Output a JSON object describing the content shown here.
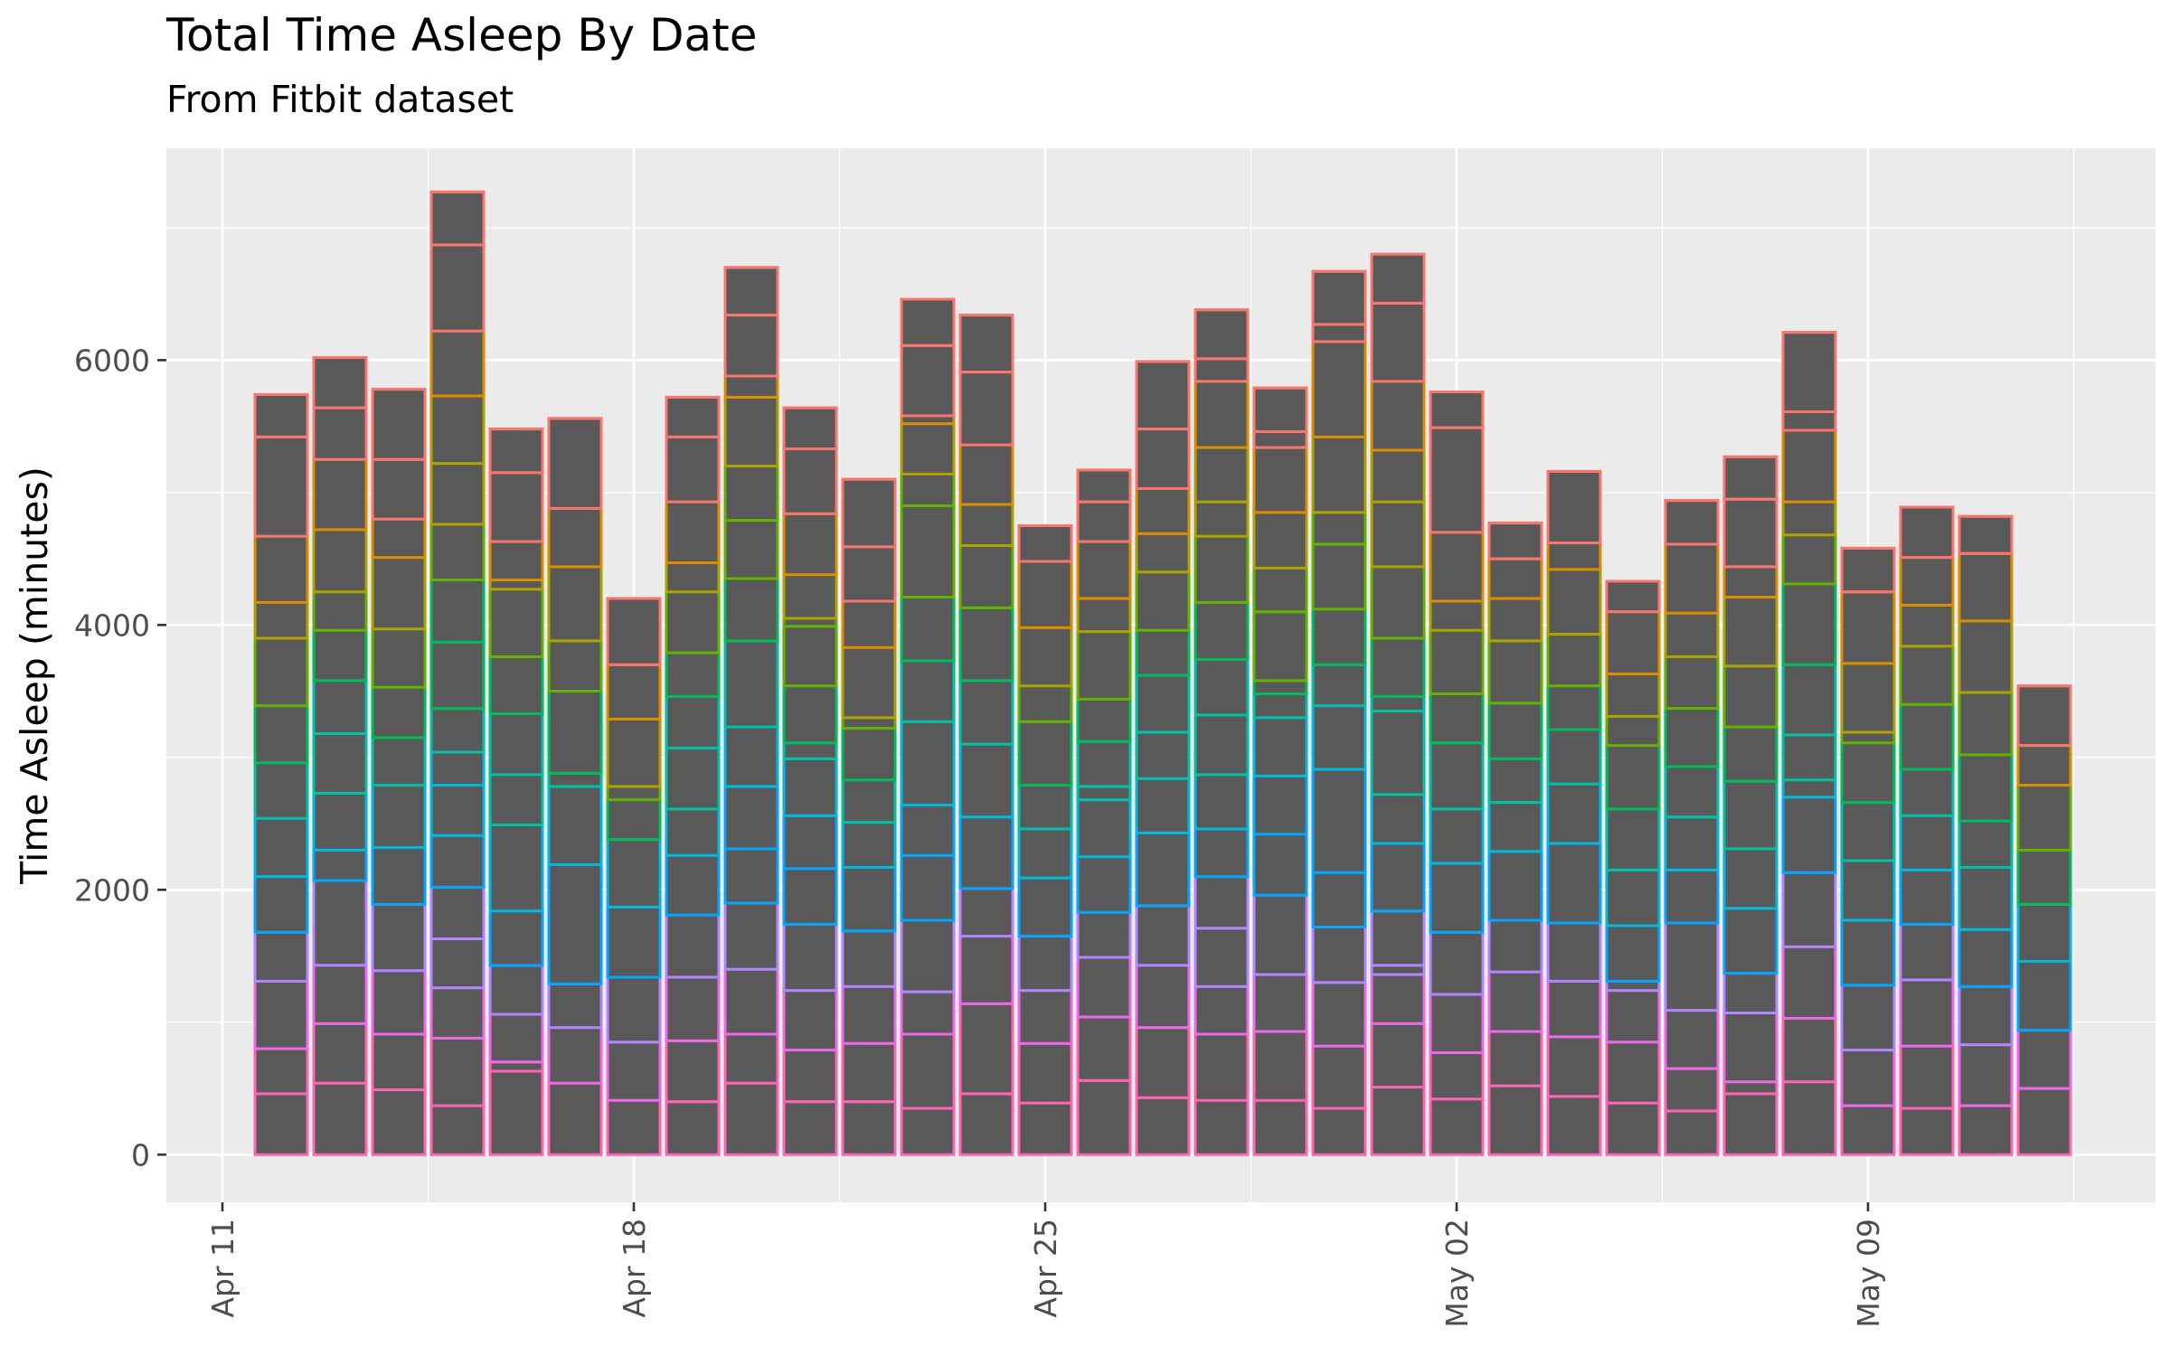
{
  "chart_data": {
    "type": "bar",
    "title": "Total Time Asleep By Date",
    "subtitle": "From Fitbit dataset",
    "xlabel": "",
    "ylabel": "Time Asleep (minutes)",
    "x_ticks": [
      "Apr 11",
      "Apr 18",
      "Apr 25",
      "May 02",
      "May 09"
    ],
    "y_ticks": [
      0,
      2000,
      4000,
      6000
    ],
    "ylim": [
      -360,
      7600
    ],
    "grid": true,
    "background_color": "#ebebeb",
    "bar_fill": "#595959",
    "stack_outline_palette": [
      "#f8766d",
      "#db8e00",
      "#aea200",
      "#64b200",
      "#00bd5c",
      "#00c1a7",
      "#00bade",
      "#00a6ff",
      "#b385ff",
      "#ef67eb",
      "#ff63b6"
    ],
    "categories": [
      "Apr 12",
      "Apr 13",
      "Apr 14",
      "Apr 15",
      "Apr 16",
      "Apr 17",
      "Apr 18",
      "Apr 19",
      "Apr 20",
      "Apr 21",
      "Apr 22",
      "Apr 23",
      "Apr 24",
      "Apr 25",
      "Apr 26",
      "Apr 27",
      "Apr 28",
      "Apr 29",
      "Apr 30",
      "May 01",
      "May 02",
      "May 03",
      "May 04",
      "May 05",
      "May 06",
      "May 07",
      "May 08",
      "May 09",
      "May 10",
      "May 11",
      "May 12"
    ],
    "values": [
      5740,
      6020,
      5780,
      7270,
      5480,
      5560,
      4200,
      5720,
      6700,
      5640,
      5100,
      6460,
      6340,
      4750,
      5170,
      5990,
      6380,
      5790,
      6670,
      6800,
      5760,
      4770,
      5160,
      4330,
      4940,
      5270,
      6210,
      4580,
      4890,
      4820,
      3540
    ],
    "segment_boundaries": [
      [
        460,
        800,
        1310,
        1680,
        2100,
        2540,
        2960,
        3390,
        3900,
        4170,
        4670,
        5420
      ],
      [
        540,
        990,
        1430,
        2070,
        2300,
        2730,
        3180,
        3580,
        3960,
        4250,
        4720,
        5250,
        5640
      ],
      [
        490,
        910,
        1390,
        1890,
        2320,
        2790,
        3150,
        3530,
        3970,
        4510,
        4800,
        5250
      ],
      [
        370,
        880,
        1260,
        1630,
        2020,
        2410,
        2790,
        3040,
        3370,
        3870,
        4340,
        4760,
        5220,
        5730,
        6220,
        6870
      ],
      [
        630,
        700,
        1060,
        1430,
        1840,
        2490,
        2870,
        3330,
        3760,
        4270,
        4340,
        4630,
        5150
      ],
      [
        540,
        960,
        1290,
        2190,
        2780,
        2880,
        3500,
        3880,
        4440,
        4880
      ],
      [
        410,
        850,
        1340,
        1870,
        2380,
        2680,
        2780,
        3290,
        3700
      ],
      [
        400,
        860,
        1340,
        1810,
        2260,
        2610,
        3070,
        3460,
        3790,
        4250,
        4470,
        4930,
        5420
      ],
      [
        540,
        910,
        1400,
        1900,
        2310,
        2780,
        3230,
        3880,
        4350,
        4790,
        5200,
        5720,
        5880,
        6340
      ],
      [
        400,
        790,
        1240,
        1740,
        2160,
        2560,
        2990,
        3110,
        3540,
        3990,
        4050,
        4380,
        4840,
        5330
      ],
      [
        400,
        840,
        1270,
        1690,
        2170,
        2510,
        2830,
        3220,
        3300,
        3830,
        4180,
        4590
      ],
      [
        350,
        910,
        1230,
        1770,
        2260,
        2640,
        3270,
        3730,
        4210,
        4900,
        5140,
        5520,
        5580,
        6110
      ],
      [
        460,
        1140,
        1650,
        2010,
        2550,
        3100,
        3580,
        4130,
        4600,
        4910,
        5360,
        5910
      ],
      [
        390,
        840,
        1240,
        1650,
        2090,
        2460,
        2790,
        3270,
        3540,
        3980,
        4480
      ],
      [
        560,
        1040,
        1490,
        1830,
        2250,
        2680,
        2780,
        3120,
        3440,
        3950,
        4200,
        4630,
        4930
      ],
      [
        430,
        960,
        1430,
        1880,
        2430,
        2840,
        3190,
        3620,
        3960,
        4400,
        4690,
        5030,
        5480
      ],
      [
        410,
        910,
        1270,
        1710,
        2100,
        2460,
        2870,
        3320,
        3740,
        4170,
        4670,
        4930,
        5340,
        5840,
        6010
      ],
      [
        410,
        930,
        1360,
        1960,
        2420,
        2860,
        3300,
        3480,
        3580,
        4100,
        4430,
        4850,
        5340,
        5460
      ],
      [
        350,
        820,
        1300,
        1720,
        2130,
        2910,
        3390,
        3700,
        4120,
        4610,
        4850,
        5420,
        6140,
        6270
      ],
      [
        510,
        990,
        1360,
        1430,
        1840,
        2350,
        2720,
        3350,
        3460,
        3900,
        4440,
        4930,
        5320,
        5840,
        6430
      ],
      [
        420,
        770,
        1210,
        1680,
        2200,
        2610,
        3110,
        3480,
        3960,
        4180,
        4700,
        5490
      ],
      [
        520,
        930,
        1380,
        1770,
        2290,
        2660,
        2990,
        3410,
        3880,
        4200,
        4500
      ],
      [
        440,
        890,
        1310,
        1750,
        2350,
        2800,
        3210,
        3540,
        3930,
        4420,
        4620
      ],
      [
        390,
        850,
        1240,
        1310,
        1730,
        2150,
        2610,
        3090,
        3310,
        3630,
        4100
      ],
      [
        330,
        650,
        1090,
        1750,
        2150,
        2550,
        2930,
        3370,
        3760,
        4090,
        4610
      ],
      [
        460,
        550,
        1070,
        1370,
        1860,
        2310,
        2820,
        3230,
        3690,
        4210,
        4440,
        4950
      ],
      [
        550,
        1030,
        1570,
        2130,
        2700,
        2830,
        3170,
        3700,
        4310,
        4680,
        4930,
        5470,
        5610
      ],
      [
        370,
        790,
        1280,
        1770,
        2220,
        2660,
        3110,
        3190,
        3710,
        4250
      ],
      [
        350,
        820,
        1320,
        1740,
        2150,
        2560,
        2910,
        3400,
        3840,
        4150,
        4510
      ],
      [
        370,
        830,
        1270,
        1700,
        2170,
        2520,
        3020,
        3490,
        4030,
        4540
      ],
      [
        500,
        940,
        1460,
        1890,
        2300,
        2790,
        3090
      ]
    ]
  }
}
